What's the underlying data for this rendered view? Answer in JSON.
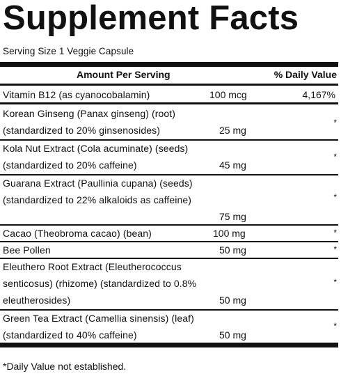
{
  "title": "Supplement Facts",
  "serving_size": "Serving Size 1 Veggie Capsule",
  "header": {
    "amount_per_serving": "Amount Per Serving",
    "daily_value": "% Daily Value"
  },
  "rows": [
    {
      "lines": [
        "Vitamin B12 (as cyanocobalamin)"
      ],
      "amount": "100 mcg",
      "dv": "4,167%"
    },
    {
      "lines": [
        "Korean Ginseng (Panax ginseng) (root)",
        "(standardized to 20% ginsenosides)"
      ],
      "amount": "25 mg",
      "dv": "*"
    },
    {
      "lines": [
        "Kola Nut Extract (Cola acuminate) (seeds)",
        "(standardized to 20% caffeine)"
      ],
      "amount": "45 mg",
      "dv": "*"
    },
    {
      "lines": [
        "Guarana Extract (Paullinia cupana) (seeds)",
        "(standardized to 22% alkaloids as caffeine)"
      ],
      "amount": "75 mg",
      "dv": "*"
    },
    {
      "lines": [
        "Cacao (Theobroma cacao) (bean)"
      ],
      "amount": "100 mg",
      "dv": "*"
    },
    {
      "lines": [
        "Bee Pollen"
      ],
      "amount": "50 mg",
      "dv": "*"
    },
    {
      "lines": [
        "Eleuthero Root Extract (Eleutherococcus",
        "senticosus) (rhizome) (standardized to 0.8%",
        "eleutherosides)"
      ],
      "amount": "50 mg",
      "dv": "*"
    },
    {
      "lines": [
        "Green Tea Extract (Camellia sinensis) (leaf)",
        "(standardized to 40% caffeine)"
      ],
      "amount": "50 mg",
      "dv": "*"
    }
  ],
  "footnote": "*Daily Value not established."
}
